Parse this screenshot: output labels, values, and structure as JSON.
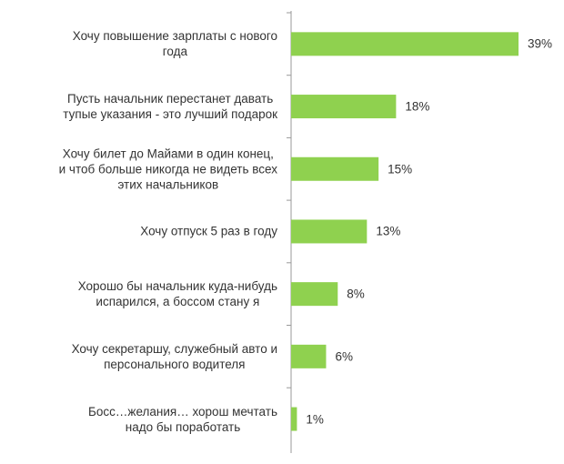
{
  "chart_data": {
    "type": "bar",
    "orientation": "horizontal",
    "color": "#8fd14f",
    "categories": [
      "Хочу повышение зарплаты  с нового\nгода",
      "Пусть начальник перестанет давать\nтупые указания - это лучший подарок",
      "Хочу билет до Майами в один конец,\nи чтоб больше никогда не видеть всех\nэтих начальников",
      "Хочу отпуск 5 раз в году",
      "Хорошо бы начальник куда-нибудь\nиспарился, а боссом стану я",
      "Хочу секретаршу, служебный авто и\nперсонального водителя",
      "Босс…желания… хорош мечтать\nнадо бы поработать"
    ],
    "values": [
      39,
      18,
      15,
      13,
      8,
      6,
      1
    ],
    "value_labels": [
      "39%",
      "18%",
      "15%",
      "13%",
      "8%",
      "6%",
      "1%"
    ]
  }
}
